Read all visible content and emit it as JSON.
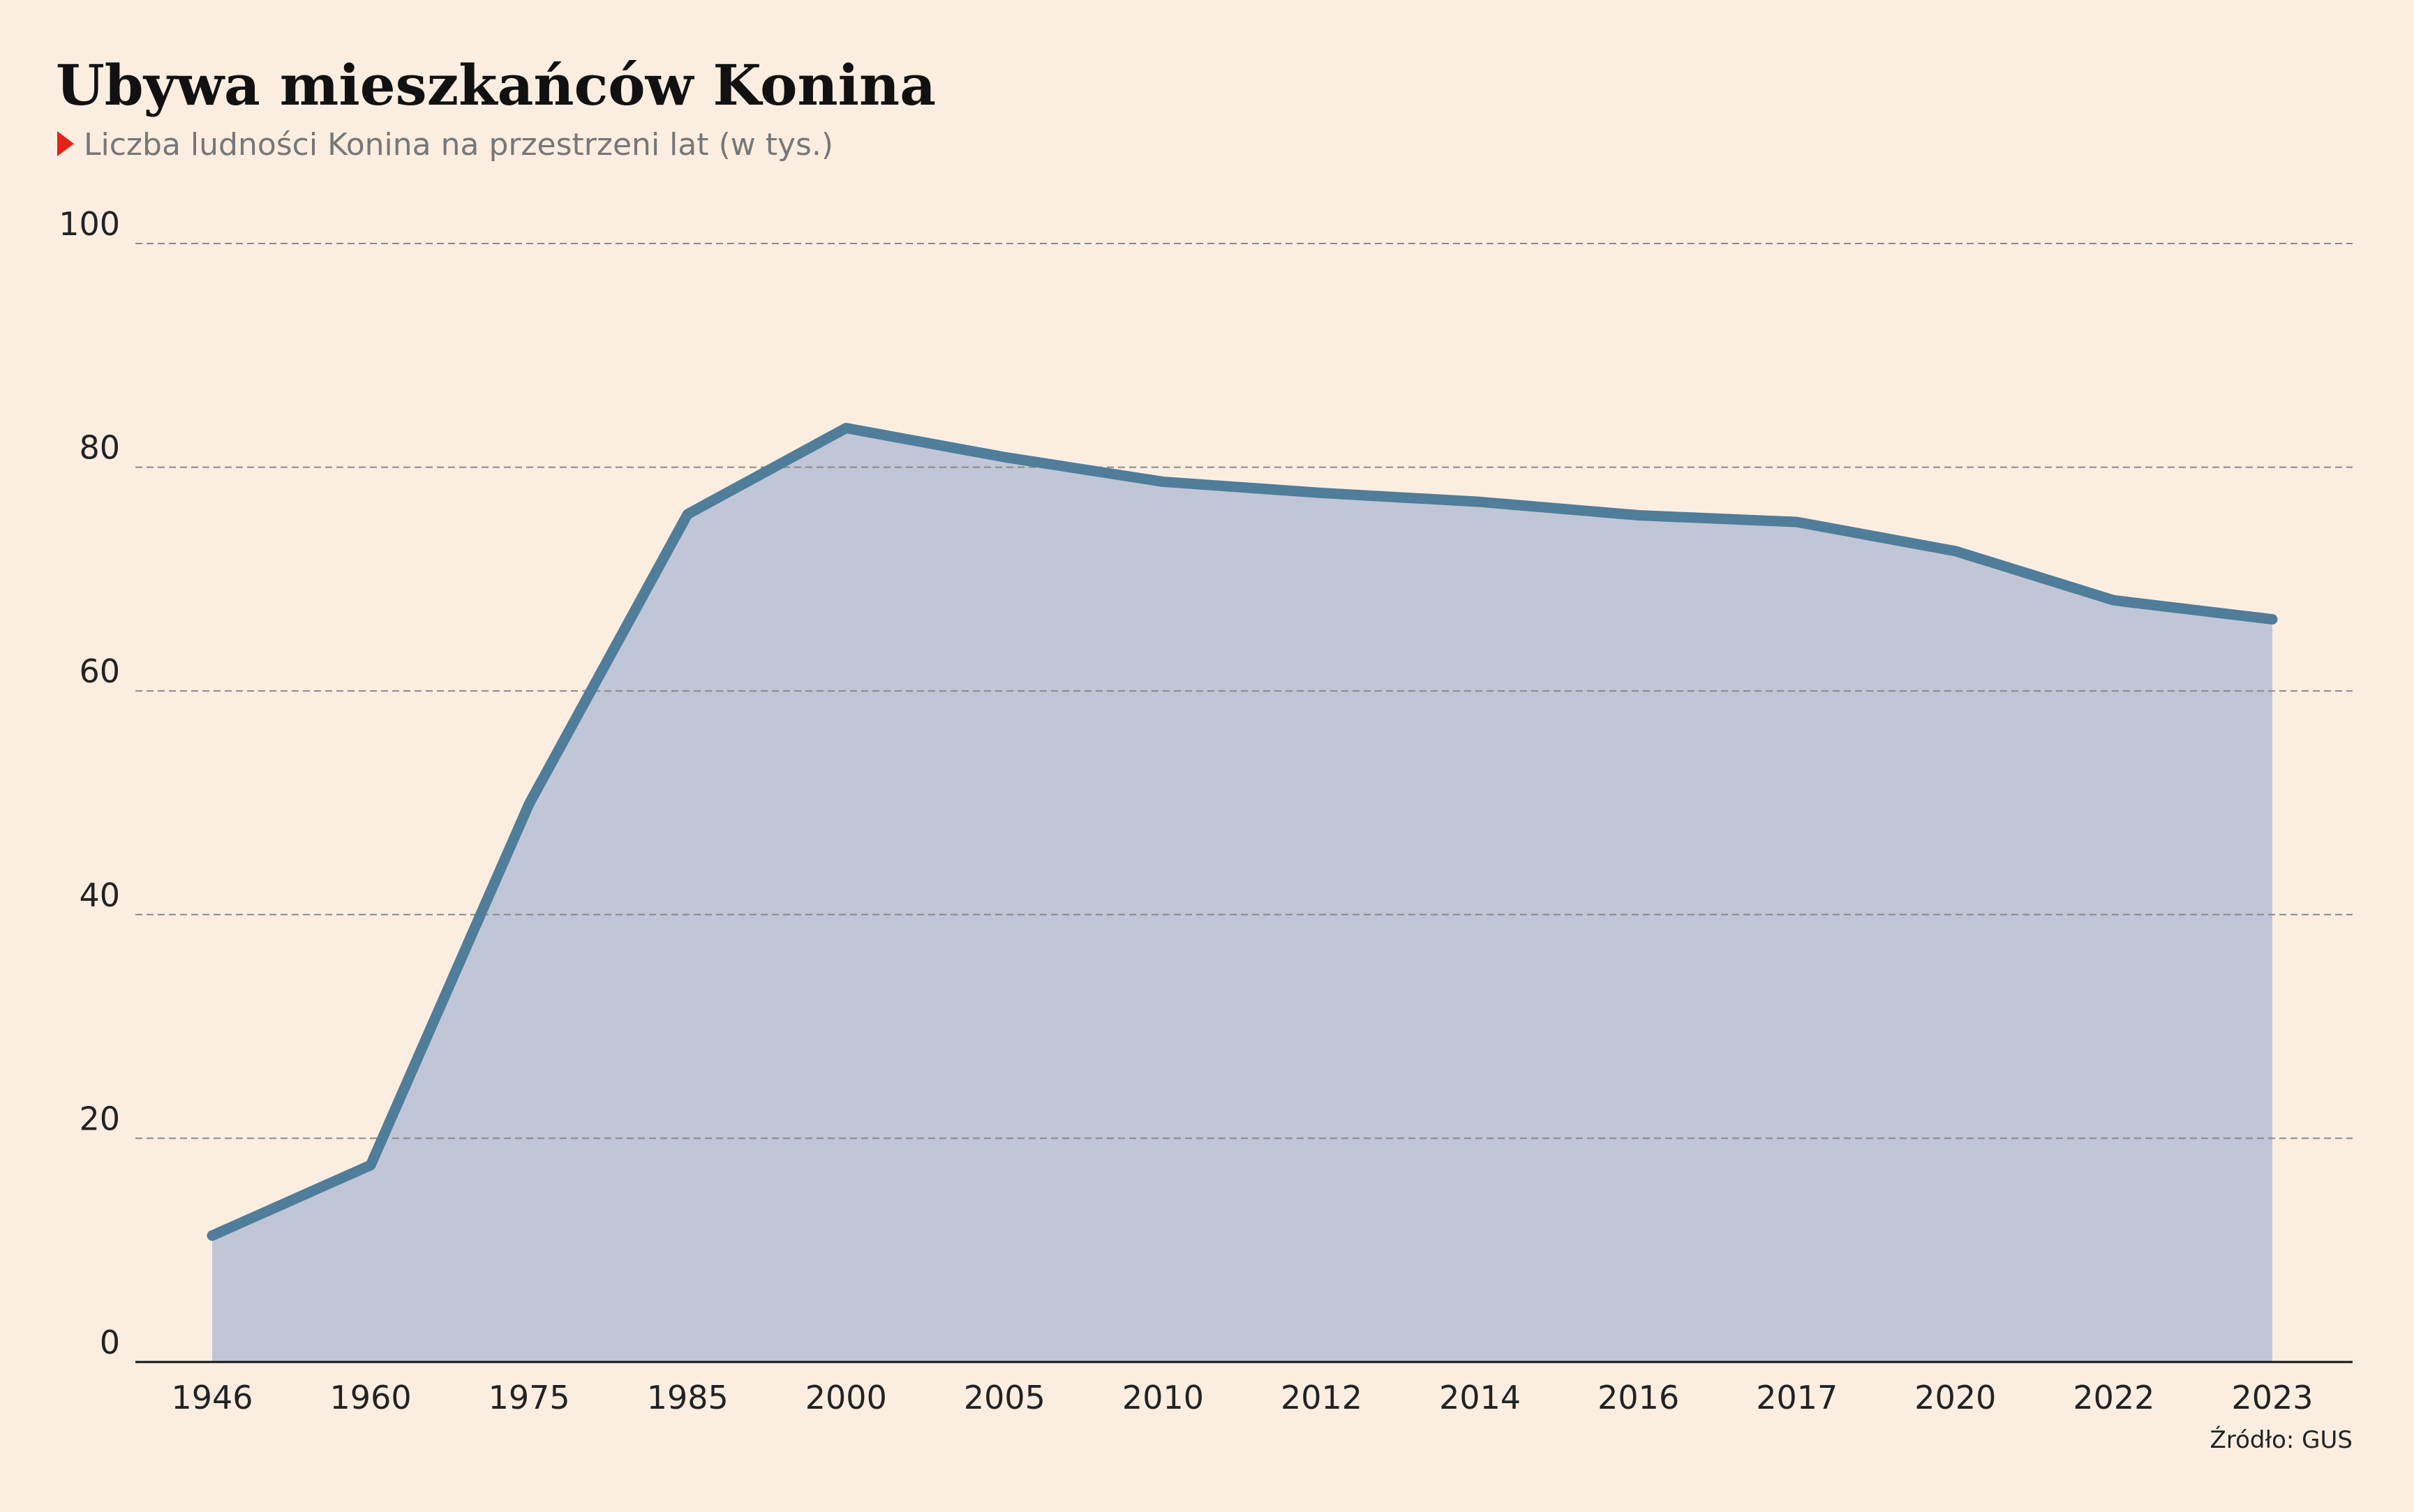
{
  "chart_data": {
    "type": "area",
    "title": "Ubywa mieszkańców Konina",
    "subtitle": "Liczba ludności Konina na przestrzeni lat (w tys.)",
    "source": "Źródło: GUS",
    "categories": [
      "1946",
      "1960",
      "1975",
      "1985",
      "2000",
      "2005",
      "2010",
      "2012",
      "2014",
      "2016",
      "2017",
      "2020",
      "2022",
      "2023"
    ],
    "values": [
      11.3,
      17.6,
      49.9,
      75.8,
      83.5,
      80.9,
      78.7,
      77.7,
      76.9,
      75.7,
      75.1,
      72.5,
      68.1,
      66.4
    ],
    "color": "#4f7d9a",
    "fill_color": "#c1c6d6",
    "ylim": [
      0,
      100
    ],
    "yticks": [
      0,
      20,
      40,
      60,
      80,
      100
    ],
    "grid": true
  }
}
